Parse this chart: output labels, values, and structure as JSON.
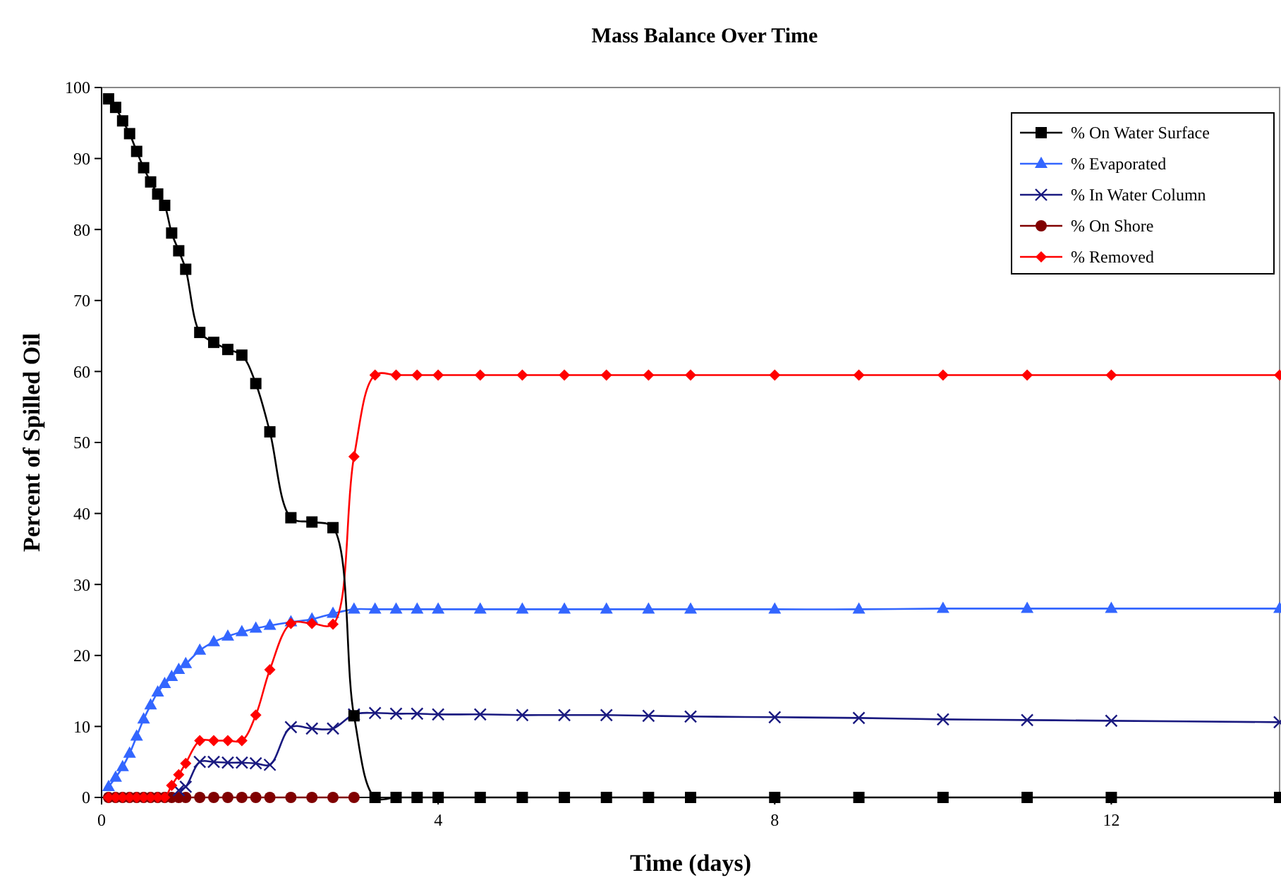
{
  "chart_data": {
    "type": "line",
    "title": "Mass Balance Over Time",
    "xlabel": "Time (days)",
    "ylabel": "Percent of Spilled Oil",
    "x": [
      0.083,
      0.167,
      0.25,
      0.333,
      0.417,
      0.5,
      0.583,
      0.667,
      0.75,
      0.833,
      0.917,
      1,
      1.167,
      1.333,
      1.5,
      1.667,
      1.833,
      2,
      2.25,
      2.5,
      2.75,
      3,
      3.25,
      3.5,
      3.75,
      4,
      4.5,
      5,
      5.5,
      6,
      6.5,
      7,
      8,
      9,
      10,
      11,
      12,
      14
    ],
    "xlim": [
      0,
      14
    ],
    "xticks": [
      0,
      4,
      8,
      12
    ],
    "ylim": [
      0,
      100
    ],
    "yticks": [
      0,
      10,
      20,
      30,
      40,
      50,
      60,
      70,
      80,
      90,
      100
    ],
    "grid": false,
    "legend": "top right",
    "line_style": "solid",
    "series": [
      {
        "name": "% On Water Surface",
        "color": "#000000",
        "marker": "square",
        "values": [
          98.4,
          97.2,
          95.3,
          93.5,
          91.0,
          88.7,
          86.7,
          85.0,
          83.4,
          79.5,
          77.0,
          74.4,
          65.5,
          64.1,
          63.1,
          62.3,
          58.3,
          51.5,
          39.4,
          38.8,
          38.0,
          11.5,
          0,
          0,
          0,
          0,
          0,
          0,
          0,
          0,
          0,
          0,
          0,
          0,
          0,
          0,
          0,
          0
        ]
      },
      {
        "name": "% Evaporated",
        "color": "#3366ff",
        "marker": "triangle",
        "values": [
          1.5,
          2.8,
          4.3,
          6.2,
          8.6,
          11,
          13,
          14.8,
          16,
          17,
          18,
          18.8,
          20.7,
          21.9,
          22.7,
          23.3,
          23.8,
          24.2,
          24.7,
          25.1,
          25.9,
          26.5,
          26.5,
          26.5,
          26.5,
          26.5,
          26.5,
          26.5,
          26.5,
          26.5,
          26.5,
          26.5,
          26.5,
          26.5,
          26.6,
          26.6,
          26.6,
          26.6
        ]
      },
      {
        "name": "% In Water Column",
        "color": "#1a1a80",
        "marker": "cross",
        "values": [
          null,
          null,
          null,
          null,
          null,
          null,
          null,
          null,
          null,
          null,
          1.0,
          1.5,
          5.0,
          5.0,
          4.9,
          4.9,
          4.8,
          4.6,
          9.9,
          9.7,
          9.7,
          11.7,
          11.9,
          11.8,
          11.8,
          11.7,
          11.7,
          11.6,
          11.6,
          11.6,
          11.5,
          11.4,
          11.3,
          11.2,
          11.0,
          10.9,
          10.8,
          10.6
        ]
      },
      {
        "name": "% On Shore",
        "color": "#800000",
        "marker": "circle",
        "values": [
          0,
          0,
          0,
          0,
          0,
          0,
          0,
          0,
          0,
          0,
          0,
          0,
          0,
          0,
          0,
          0,
          0,
          0,
          0,
          0,
          0,
          0,
          null,
          null,
          null,
          null,
          null,
          null,
          null,
          null,
          null,
          null,
          null,
          null,
          null,
          null,
          null,
          null
        ]
      },
      {
        "name": "% Removed",
        "color": "#ff0000",
        "marker": "diamond",
        "values": [
          0,
          0,
          0,
          0,
          0,
          0,
          0,
          0,
          0,
          1.7,
          3.2,
          4.8,
          8.0,
          8.0,
          8.0,
          8.0,
          11.6,
          18.0,
          24.5,
          24.5,
          24.4,
          48.0,
          59.5,
          59.5,
          59.5,
          59.5,
          59.5,
          59.5,
          59.5,
          59.5,
          59.5,
          59.5,
          59.5,
          59.5,
          59.5,
          59.5,
          59.5,
          59.5
        ]
      }
    ]
  }
}
